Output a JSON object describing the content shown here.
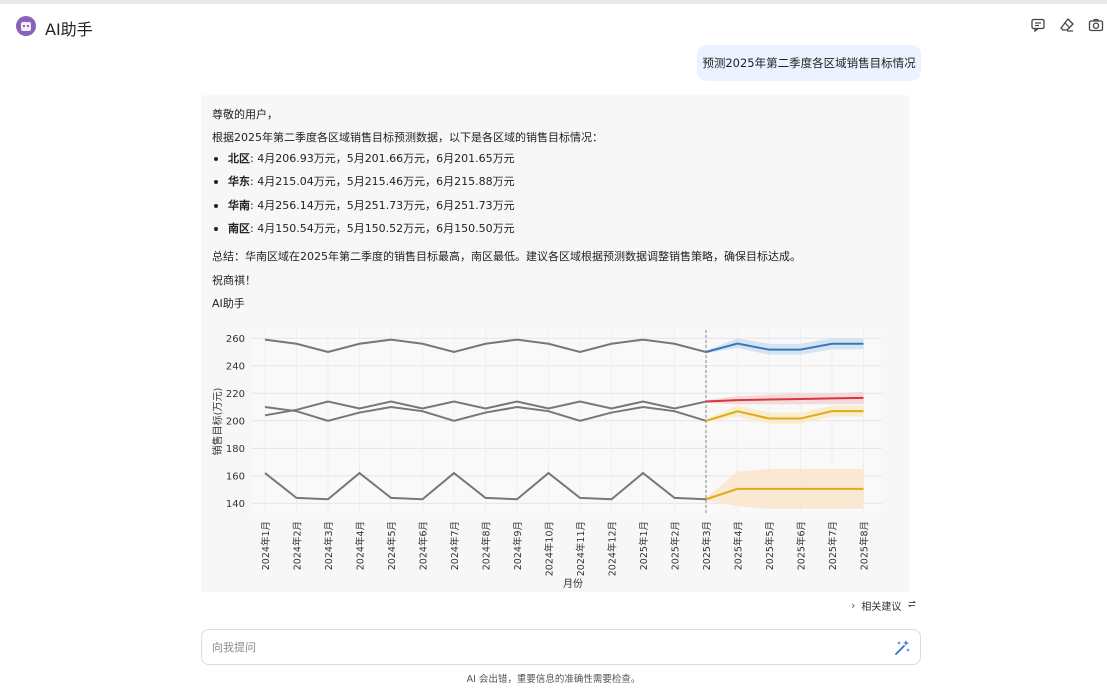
{
  "header": {
    "title": "AI助手",
    "icons": [
      "chat-icon",
      "eraser-icon",
      "camera-icon"
    ]
  },
  "user_message": "预测2025年第二季度各区域销售目标情况",
  "answer": {
    "greeting": "尊敬的用户，",
    "intro": "根据2025年第二季度各区域销售目标预测数据，以下是各区域的销售目标情况：",
    "regions": [
      {
        "name": "北区",
        "detail": ": 4月206.93万元，5月201.66万元，6月201.65万元"
      },
      {
        "name": "华东",
        "detail": ": 4月215.04万元，5月215.46万元，6月215.88万元"
      },
      {
        "name": "华南",
        "detail": ": 4月256.14万元，5月251.73万元，6月251.73万元"
      },
      {
        "name": "南区",
        "detail": ": 4月150.54万元，5月150.52万元，6月150.50万元"
      }
    ],
    "summary": "总结：华南区域在2025年第二季度的销售目标最高，南区最低。建议各区域根据预测数据调整销售策略，确保目标达成。",
    "closing": "祝商祺！",
    "signature": "AI助手"
  },
  "chart_data": {
    "type": "line",
    "xlabel": "月份",
    "ylabel": "销售目标(万元)",
    "ylim": [
      133,
      266
    ],
    "yticks": [
      140,
      160,
      180,
      200,
      220,
      240,
      260
    ],
    "categories": [
      "2024年1月",
      "2024年2月",
      "2024年3月",
      "2024年4月",
      "2024年5月",
      "2024年6月",
      "2024年7月",
      "2024年8月",
      "2024年9月",
      "2024年10月",
      "2024年11月",
      "2024年12月",
      "2025年1月",
      "2025年2月",
      "2025年3月",
      "2025年4月",
      "2025年5月",
      "2025年6月",
      "2025年7月",
      "2025年8月"
    ],
    "forecast_start": "2025年3月",
    "grid": true,
    "historical_color": "#777777",
    "historical": [
      [
        259,
        256,
        250,
        256,
        259,
        256,
        250,
        256,
        259,
        256,
        250,
        256,
        259,
        256,
        250
      ],
      [
        210,
        207,
        200,
        206,
        210,
        207,
        200,
        206,
        210,
        207,
        200,
        206,
        210,
        207,
        200
      ],
      [
        204,
        208,
        214,
        209,
        214,
        209,
        214,
        209,
        214,
        209,
        214,
        209,
        214,
        209,
        214
      ],
      [
        162,
        144,
        143,
        162,
        144,
        143,
        162,
        144,
        143,
        162,
        144,
        143,
        162,
        144,
        143
      ]
    ],
    "forecast": [
      {
        "color": "#3b77b8",
        "band": "#cfe0f2",
        "values": [
          250,
          256.14,
          251.73,
          251.73,
          256,
          256
        ],
        "lower": [
          249,
          253,
          248,
          248,
          252,
          252
        ],
        "upper": [
          251,
          260,
          256,
          256,
          260,
          260
        ]
      },
      {
        "color": "#d9363e",
        "band": "#f5d5d7",
        "values": [
          214,
          215.04,
          215.46,
          215.88,
          216.3,
          216.7
        ],
        "lower": [
          213,
          212,
          212,
          212,
          212,
          212
        ],
        "upper": [
          215,
          218,
          219,
          220,
          220,
          221
        ]
      },
      {
        "color": "#e3a81a",
        "band": "#f8ebc4",
        "values": [
          200,
          206.93,
          201.66,
          201.65,
          207,
          207
        ],
        "lower": [
          199,
          203,
          198,
          198,
          203,
          203
        ],
        "upper": [
          201,
          211,
          206,
          206,
          211,
          211
        ]
      },
      {
        "color": "#e3a81a",
        "band": "#fbe5cc",
        "values": [
          143,
          150.54,
          150.52,
          150.5,
          150.5,
          150.5
        ],
        "lower": [
          142,
          138,
          136,
          136,
          136,
          136
        ],
        "upper": [
          144,
          163,
          165,
          165,
          165,
          165
        ]
      }
    ]
  },
  "suggestions": {
    "label": "相关建议"
  },
  "input": {
    "placeholder": "向我提问",
    "value": ""
  },
  "footer": {
    "disclaimer": "AI 会出错，重要信息的准确性需要检查。"
  }
}
